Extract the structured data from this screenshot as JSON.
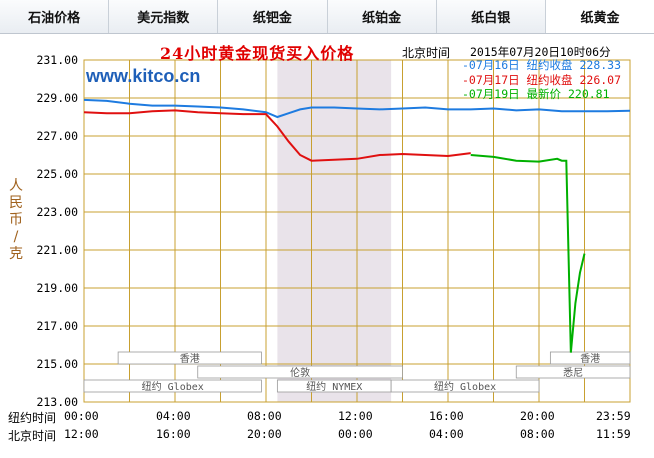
{
  "tabs": [
    "石油价格",
    "美元指数",
    "纸钯金",
    "纸铂金",
    "纸白银",
    "纸黄金"
  ],
  "active_tab": 5,
  "title": "24小时黄金现货买入价格",
  "beijing_time_label": "北京时间",
  "beijing_time_value": "2015年07月20日10时06分",
  "watermark": "www.kitco.cn",
  "y_axis_label": "人民币/克",
  "legend": [
    {
      "date": "07月16日",
      "label": "纽约收盘",
      "value": "228.33",
      "color": "#1e7be0"
    },
    {
      "date": "07月17日",
      "label": "纽约收盘",
      "value": "226.07",
      "color": "#e01010"
    },
    {
      "date": "07月19日",
      "label": "最新价",
      "value": "220.81",
      "color": "#00b000"
    }
  ],
  "y_ticks": [
    "231.00",
    "229.00",
    "227.00",
    "225.00",
    "223.00",
    "221.00",
    "219.00",
    "217.00",
    "215.00",
    "213.00"
  ],
  "row_labels": {
    "ny": "纽约时间",
    "bj": "北京时间"
  },
  "ny_times": [
    "00:00",
    "04:00",
    "08:00",
    "12:00",
    "16:00",
    "20:00",
    "23:59"
  ],
  "bj_times": [
    "12:00",
    "16:00",
    "20:00",
    "00:00",
    "04:00",
    "08:00",
    "11:59"
  ],
  "markets": [
    {
      "name": "香港"
    },
    {
      "name": "纽约 Globex"
    },
    {
      "name": "伦敦"
    },
    {
      "name": "纽约 NYMEX"
    },
    {
      "name": "纽约 Globex"
    },
    {
      "name": "香港"
    },
    {
      "name": "悉尼"
    }
  ],
  "colors": {
    "grid": "#c8a030",
    "axis_text": "#000000",
    "shade": "#e9e3ea",
    "blue": "#1e7be0",
    "red": "#e01010",
    "green": "#00b000"
  },
  "chart_data": {
    "type": "line",
    "x_unit": "hours (New York time)",
    "ylim": [
      213,
      231
    ],
    "x_range": [
      0,
      24
    ],
    "series": [
      {
        "name": "07月16日 纽约收盘",
        "color": "#1e7be0",
        "x": [
          0,
          1,
          2,
          3,
          4,
          5,
          6,
          7,
          8,
          8.5,
          9,
          9.5,
          10,
          11,
          12,
          13,
          14,
          15,
          16,
          17,
          18,
          19,
          20,
          21,
          22,
          23,
          24
        ],
        "y": [
          228.9,
          228.85,
          228.7,
          228.6,
          228.6,
          228.55,
          228.5,
          228.4,
          228.25,
          228.0,
          228.2,
          228.4,
          228.5,
          228.5,
          228.45,
          228.4,
          228.45,
          228.5,
          228.4,
          228.4,
          228.45,
          228.35,
          228.4,
          228.3,
          228.3,
          228.3,
          228.33
        ]
      },
      {
        "name": "07月17日 纽约收盘",
        "color": "#e01010",
        "x": [
          0,
          1,
          2,
          3,
          4,
          5,
          6,
          7,
          8,
          8.5,
          9,
          9.5,
          10,
          11,
          12,
          13,
          14,
          15,
          16,
          17
        ],
        "y": [
          228.25,
          228.2,
          228.2,
          228.3,
          228.35,
          228.25,
          228.2,
          228.15,
          228.15,
          227.5,
          226.7,
          226.0,
          225.7,
          225.75,
          225.8,
          226.0,
          226.05,
          226.0,
          225.95,
          226.1
        ]
      },
      {
        "name": "07月19日 最新价",
        "color": "#00b000",
        "x": [
          17,
          18,
          19,
          20,
          20.8,
          21,
          21.2,
          21.4,
          21.6,
          21.8,
          22.0
        ],
        "y": [
          226.0,
          225.9,
          225.7,
          225.65,
          225.8,
          225.7,
          225.7,
          215.6,
          218.2,
          219.8,
          220.81
        ]
      }
    ]
  }
}
